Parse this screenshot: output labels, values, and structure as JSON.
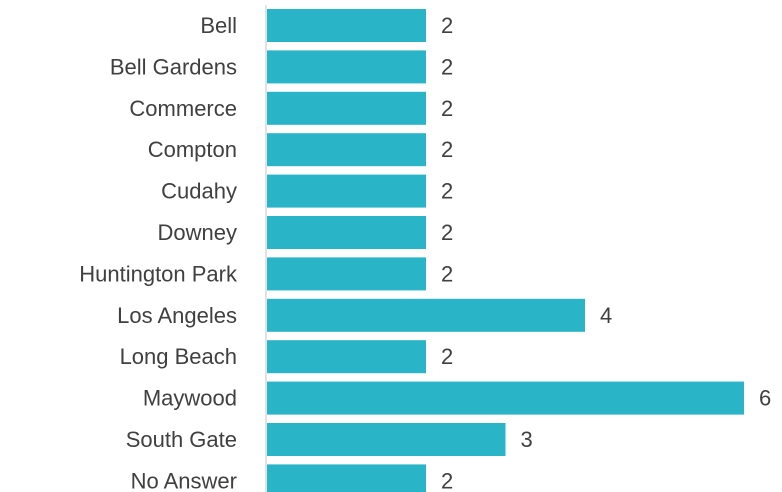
{
  "chart_data": {
    "type": "bar",
    "orientation": "horizontal",
    "categories": [
      "Bell",
      "Bell Gardens",
      "Commerce",
      "Compton",
      "Cudahy",
      "Downey",
      "Huntington Park",
      "Los Angeles",
      "Long Beach",
      "Maywood",
      "South Gate",
      "No Answer"
    ],
    "values": [
      2,
      2,
      2,
      2,
      2,
      2,
      2,
      4,
      2,
      6,
      3,
      2
    ],
    "title": "",
    "xlabel": "",
    "ylabel": "",
    "xlim": [
      0,
      6
    ],
    "grid": false,
    "legend": "none",
    "data_labels": true
  },
  "colors": {
    "bar": "#29B4C8",
    "axis": "#D9D9D9",
    "text": "#404040"
  }
}
